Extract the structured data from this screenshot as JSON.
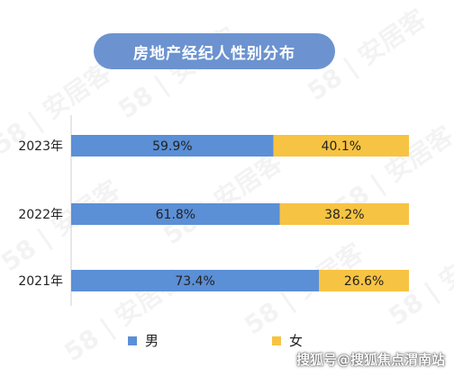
{
  "title": "房地产经纪人性别分布",
  "watermark": "58 | 安居客",
  "footer_credit": "搜狐号@搜狐焦点渭南站",
  "colors": {
    "male": "#5b8fd6",
    "female": "#f7c342",
    "title_pill": "#6c93d0"
  },
  "chart_data": {
    "type": "bar",
    "orientation": "horizontal",
    "stacked": true,
    "categories": [
      "2023年",
      "2022年",
      "2021年"
    ],
    "series": [
      {
        "name": "男",
        "values": [
          59.9,
          61.8,
          73.4
        ],
        "labels": [
          "59.9%",
          "61.8%",
          "73.4%"
        ]
      },
      {
        "name": "女",
        "values": [
          40.1,
          38.2,
          26.6
        ],
        "labels": [
          "40.1%",
          "38.2%",
          "26.6%"
        ]
      }
    ],
    "xlim": [
      0,
      100
    ],
    "grid": false,
    "legend_position": "bottom"
  }
}
